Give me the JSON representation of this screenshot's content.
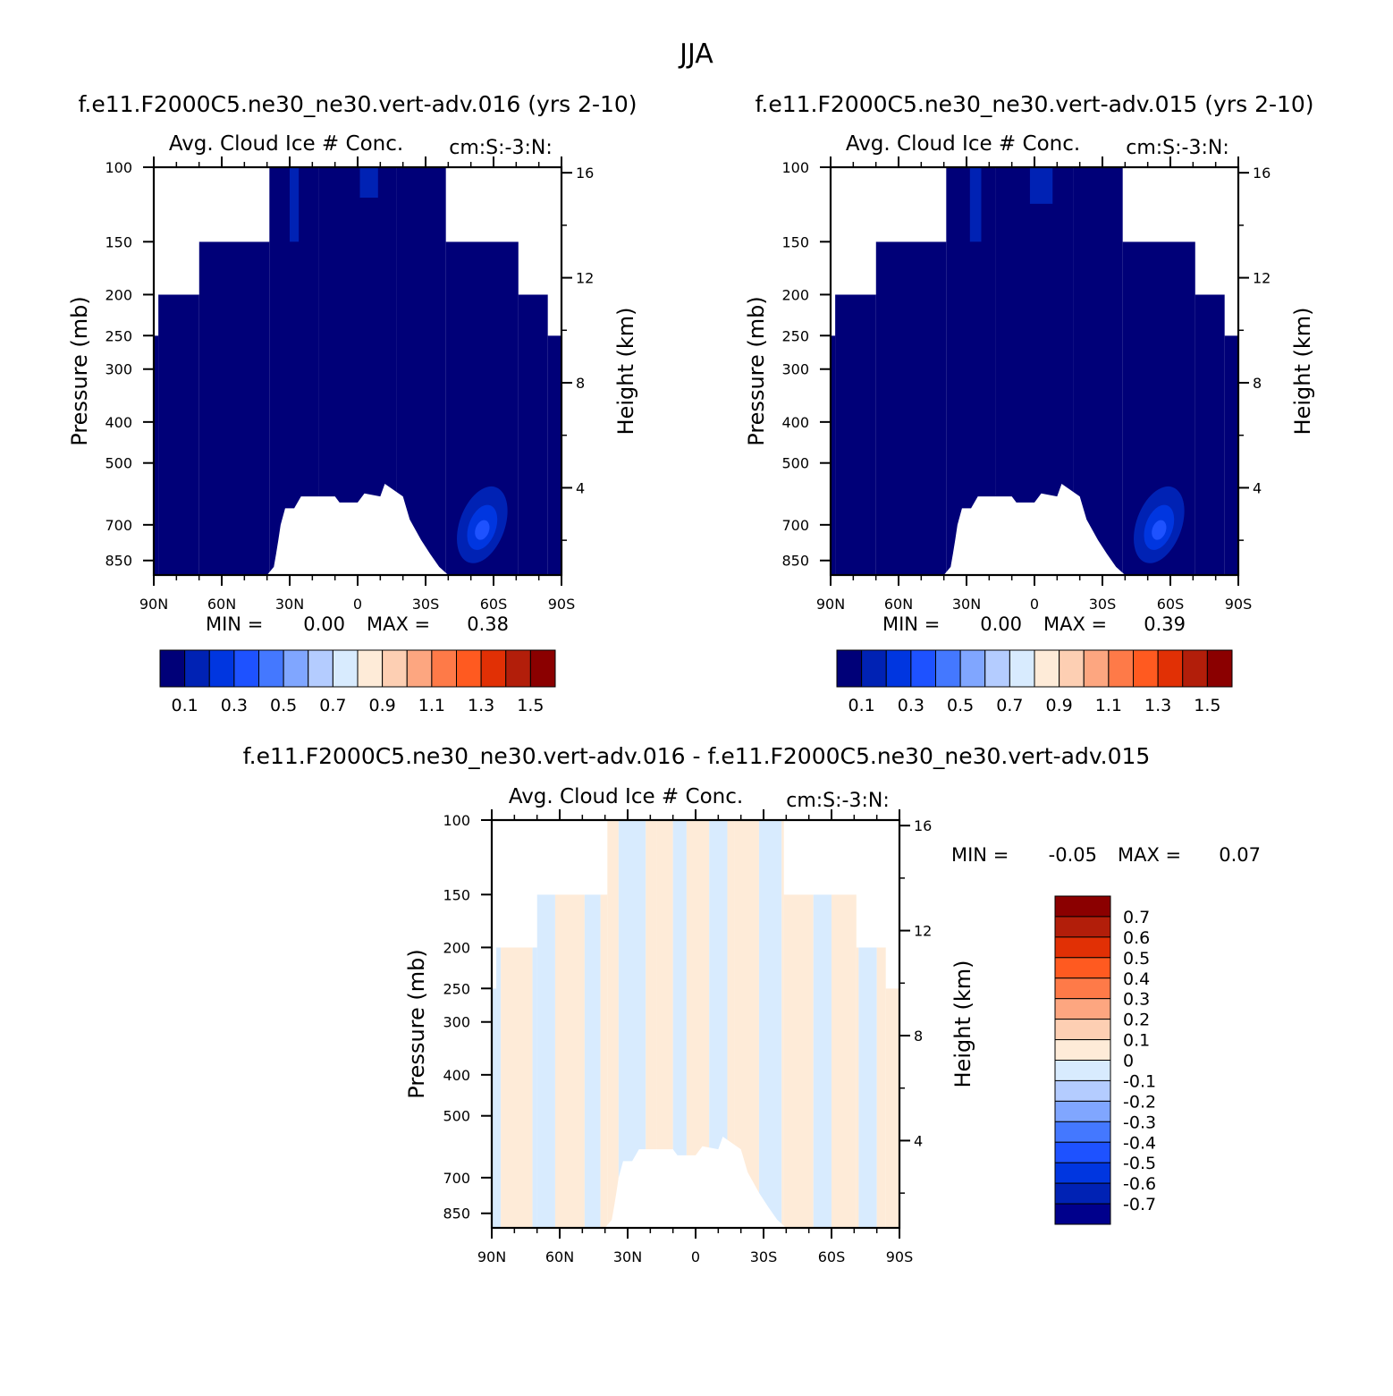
{
  "page_title": "JJA",
  "colors": {
    "seq": [
      "#000078",
      "#0022b4",
      "#0036e0",
      "#1e52ff",
      "#4478ff",
      "#80a6ff",
      "#b4ccff",
      "#d8ebfe",
      "#feebd8",
      "#fdcfb3",
      "#fda680",
      "#fe7a48",
      "#ff5a20",
      "#e13005",
      "#b21e0a",
      "#8b0000"
    ],
    "diff": [
      "#00008c",
      "#0022b4",
      "#0036e0",
      "#1e52ff",
      "#4478ff",
      "#80a6ff",
      "#b4ccff",
      "#d8ebfe",
      "#feebd8",
      "#fdcfb3",
      "#fda680",
      "#fe7a48",
      "#ff5a20",
      "#e13005",
      "#b21e0a",
      "#8b0000"
    ]
  },
  "chart_data": [
    {
      "id": "case1",
      "type": "heatmap",
      "case_title": "f.e11.F2000C5.ne30_ne30.vert-adv.016 (yrs 2-10)",
      "title": "Avg. Cloud Ice # Conc.",
      "units": "cm:S:-3:N:",
      "xlabel": "",
      "ylabel": "Pressure (mb)",
      "y2label": "Height (km)",
      "x_ticks": [
        "90N",
        "60N",
        "30N",
        "0",
        "30S",
        "60S",
        "90S"
      ],
      "y_ticks": [
        "100",
        "150",
        "200",
        "250",
        "300",
        "400",
        "500",
        "700",
        "850"
      ],
      "y2_ticks": [
        "16",
        "12",
        "8",
        "4"
      ],
      "xlim": [
        90,
        -90
      ],
      "ylim": [
        920,
        100
      ],
      "min_label": "MIN =",
      "min_value": "0.00",
      "max_label": "MAX =",
      "max_value": "0.38",
      "colorbar_labels": [
        "0.1",
        "0.3",
        "0.5",
        "0.7",
        "0.9",
        "1.1",
        "1.3",
        "1.5"
      ],
      "columns": [
        {
          "from": 90,
          "to": 88,
          "top": 250,
          "bottom": 920
        },
        {
          "from": 88,
          "to": 70,
          "top": 200,
          "bottom": 920
        },
        {
          "from": 70,
          "to": 39,
          "top": 150,
          "bottom": 920
        },
        {
          "from": 39,
          "to": 17,
          "top": 100,
          "bottom": 920
        },
        {
          "from": 17,
          "to": -17,
          "top": 100,
          "bottom": 920
        },
        {
          "from": -17,
          "to": -39,
          "top": 100,
          "bottom": 920
        },
        {
          "from": -39,
          "to": -71,
          "top": 150,
          "bottom": 920
        },
        {
          "from": -71,
          "to": -84,
          "top": 200,
          "bottom": 920
        },
        {
          "from": -84,
          "to": -90,
          "top": 250,
          "bottom": 920
        }
      ],
      "surface": [
        [
          90,
          920
        ],
        [
          40,
          920
        ],
        [
          37,
          880
        ],
        [
          36,
          820
        ],
        [
          35,
          760
        ],
        [
          34,
          700
        ],
        [
          32,
          640
        ],
        [
          28,
          640
        ],
        [
          25,
          600
        ],
        [
          10,
          600
        ],
        [
          8,
          620
        ],
        [
          0,
          620
        ],
        [
          -3,
          590
        ],
        [
          -10,
          600
        ],
        [
          -12,
          560
        ],
        [
          -20,
          600
        ],
        [
          -23,
          680
        ],
        [
          -28,
          760
        ],
        [
          -32,
          820
        ],
        [
          -36,
          880
        ],
        [
          -40,
          920
        ],
        [
          -90,
          920
        ]
      ],
      "blobs": [
        {
          "lat": -55,
          "p": 700,
          "rlat": 10,
          "rp": 150,
          "level": 1
        },
        {
          "lat": -55,
          "p": 710,
          "rlat": 6,
          "rp": 90,
          "level": 2
        },
        {
          "lat": -55,
          "p": 720,
          "rlat": 3,
          "rp": 40,
          "level": 3
        }
      ],
      "top_fingers": [
        {
          "lat": 28,
          "width": 4,
          "p_top": 100,
          "p_bot": 150,
          "level": 1
        },
        {
          "lat": -5,
          "width": 8,
          "p_top": 100,
          "p_bot": 118,
          "level": 1
        }
      ]
    },
    {
      "id": "case2",
      "type": "heatmap",
      "case_title": "f.e11.F2000C5.ne30_ne30.vert-adv.015 (yrs 2-10)",
      "title": "Avg. Cloud Ice # Conc.",
      "units": "cm:S:-3:N:",
      "xlabel": "",
      "ylabel": "Pressure (mb)",
      "y2label": "Height (km)",
      "x_ticks": [
        "90N",
        "60N",
        "30N",
        "0",
        "30S",
        "60S",
        "90S"
      ],
      "y_ticks": [
        "100",
        "150",
        "200",
        "250",
        "300",
        "400",
        "500",
        "700",
        "850"
      ],
      "y2_ticks": [
        "16",
        "12",
        "8",
        "4"
      ],
      "xlim": [
        90,
        -90
      ],
      "ylim": [
        920,
        100
      ],
      "min_label": "MIN =",
      "min_value": "0.00",
      "max_label": "MAX =",
      "max_value": "0.39",
      "colorbar_labels": [
        "0.1",
        "0.3",
        "0.5",
        "0.7",
        "0.9",
        "1.1",
        "1.3",
        "1.5"
      ],
      "columns": [
        {
          "from": 90,
          "to": 88,
          "top": 250,
          "bottom": 920
        },
        {
          "from": 88,
          "to": 70,
          "top": 200,
          "bottom": 920
        },
        {
          "from": 70,
          "to": 39,
          "top": 150,
          "bottom": 920
        },
        {
          "from": 39,
          "to": 17,
          "top": 100,
          "bottom": 920
        },
        {
          "from": 17,
          "to": -17,
          "top": 100,
          "bottom": 920
        },
        {
          "from": -17,
          "to": -39,
          "top": 100,
          "bottom": 920
        },
        {
          "from": -39,
          "to": -71,
          "top": 150,
          "bottom": 920
        },
        {
          "from": -71,
          "to": -84,
          "top": 200,
          "bottom": 920
        },
        {
          "from": -84,
          "to": -90,
          "top": 250,
          "bottom": 920
        }
      ],
      "surface": [
        [
          90,
          920
        ],
        [
          40,
          920
        ],
        [
          37,
          880
        ],
        [
          36,
          820
        ],
        [
          35,
          760
        ],
        [
          34,
          700
        ],
        [
          32,
          640
        ],
        [
          28,
          640
        ],
        [
          25,
          600
        ],
        [
          10,
          600
        ],
        [
          8,
          620
        ],
        [
          0,
          620
        ],
        [
          -3,
          590
        ],
        [
          -10,
          600
        ],
        [
          -12,
          560
        ],
        [
          -20,
          600
        ],
        [
          -23,
          680
        ],
        [
          -28,
          760
        ],
        [
          -32,
          820
        ],
        [
          -36,
          880
        ],
        [
          -40,
          920
        ],
        [
          -90,
          920
        ]
      ],
      "blobs": [
        {
          "lat": -55,
          "p": 700,
          "rlat": 10,
          "rp": 150,
          "level": 1
        },
        {
          "lat": -55,
          "p": 710,
          "rlat": 6,
          "rp": 90,
          "level": 2
        },
        {
          "lat": -55,
          "p": 720,
          "rlat": 3,
          "rp": 40,
          "level": 3
        }
      ],
      "top_fingers": [
        {
          "lat": 26,
          "width": 5,
          "p_top": 100,
          "p_bot": 150,
          "level": 1
        },
        {
          "lat": -3,
          "width": 10,
          "p_top": 100,
          "p_bot": 122,
          "level": 1
        }
      ]
    },
    {
      "id": "diff",
      "type": "heatmap",
      "case_title": "f.e11.F2000C5.ne30_ne30.vert-adv.016 - f.e11.F2000C5.ne30_ne30.vert-adv.015",
      "title": "Avg. Cloud Ice # Conc.",
      "units": "cm:S:-3:N:",
      "xlabel": "",
      "ylabel": "Pressure (mb)",
      "y2label": "Height (km)",
      "x_ticks": [
        "90N",
        "60N",
        "30N",
        "0",
        "30S",
        "60S",
        "90S"
      ],
      "y_ticks": [
        "100",
        "150",
        "200",
        "250",
        "300",
        "400",
        "500",
        "700",
        "850"
      ],
      "y2_ticks": [
        "16",
        "12",
        "8",
        "4"
      ],
      "xlim": [
        90,
        -90
      ],
      "ylim": [
        920,
        100
      ],
      "min_label": "MIN =",
      "min_value": "-0.05",
      "max_label": "MAX =",
      "max_value": "0.07",
      "colorbar_labels": [
        "0.7",
        "0.6",
        "0.5",
        "0.4",
        "0.3",
        "0.2",
        "0.1",
        "0",
        "-0.1",
        "-0.2",
        "-0.3",
        "-0.4",
        "-0.5",
        "-0.6",
        "-0.7"
      ],
      "columns": [
        {
          "from": 90,
          "to": 88,
          "top": 250,
          "bottom": 920
        },
        {
          "from": 88,
          "to": 70,
          "top": 200,
          "bottom": 920
        },
        {
          "from": 70,
          "to": 39,
          "top": 150,
          "bottom": 920
        },
        {
          "from": 39,
          "to": 17,
          "top": 100,
          "bottom": 920
        },
        {
          "from": 17,
          "to": -17,
          "top": 100,
          "bottom": 920
        },
        {
          "from": -17,
          "to": -39,
          "top": 100,
          "bottom": 920
        },
        {
          "from": -39,
          "to": -71,
          "top": 150,
          "bottom": 920
        },
        {
          "from": -71,
          "to": -84,
          "top": 200,
          "bottom": 920
        },
        {
          "from": -84,
          "to": -90,
          "top": 250,
          "bottom": 920
        }
      ],
      "surface": [
        [
          90,
          920
        ],
        [
          40,
          920
        ],
        [
          37,
          880
        ],
        [
          36,
          820
        ],
        [
          35,
          760
        ],
        [
          34,
          700
        ],
        [
          32,
          640
        ],
        [
          28,
          640
        ],
        [
          25,
          600
        ],
        [
          10,
          600
        ],
        [
          8,
          620
        ],
        [
          0,
          620
        ],
        [
          -3,
          590
        ],
        [
          -10,
          600
        ],
        [
          -12,
          560
        ],
        [
          -20,
          600
        ],
        [
          -23,
          680
        ],
        [
          -28,
          760
        ],
        [
          -32,
          820
        ],
        [
          -36,
          880
        ],
        [
          -40,
          920
        ],
        [
          -90,
          920
        ]
      ],
      "diff_bands": [
        {
          "from": 90,
          "to": 86,
          "sign": "neg"
        },
        {
          "from": 86,
          "to": 72,
          "sign": "pos"
        },
        {
          "from": 72,
          "to": 62,
          "sign": "neg"
        },
        {
          "from": 62,
          "to": 49,
          "sign": "pos"
        },
        {
          "from": 49,
          "to": 42,
          "sign": "neg"
        },
        {
          "from": 42,
          "to": 34,
          "sign": "pos"
        },
        {
          "from": 34,
          "to": 22,
          "sign": "neg"
        },
        {
          "from": 22,
          "to": 10,
          "sign": "pos"
        },
        {
          "from": 10,
          "to": 4,
          "sign": "neg"
        },
        {
          "from": 4,
          "to": -6,
          "sign": "pos"
        },
        {
          "from": -6,
          "to": -14,
          "sign": "neg"
        },
        {
          "from": -14,
          "to": -28,
          "sign": "pos"
        },
        {
          "from": -28,
          "to": -38,
          "sign": "neg"
        },
        {
          "from": -38,
          "to": -52,
          "sign": "pos"
        },
        {
          "from": -52,
          "to": -60,
          "sign": "neg"
        },
        {
          "from": -60,
          "to": -72,
          "sign": "pos"
        },
        {
          "from": -72,
          "to": -80,
          "sign": "neg"
        },
        {
          "from": -80,
          "to": -90,
          "sign": "pos"
        }
      ]
    }
  ]
}
